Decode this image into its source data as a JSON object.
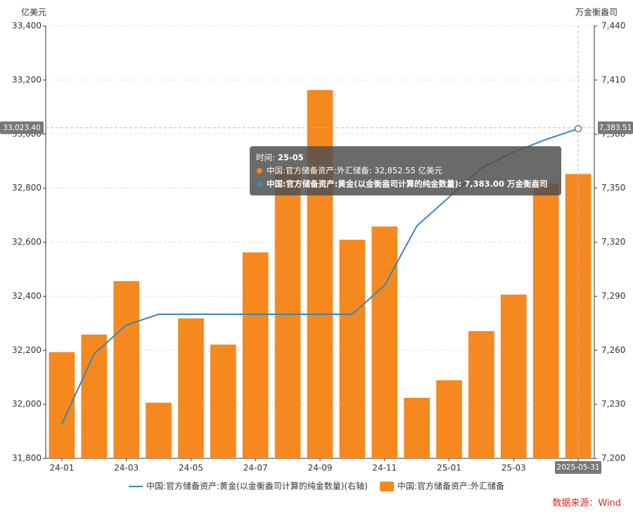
{
  "chart_data": {
    "type": "bar",
    "y_label": "亿美元",
    "y2_label": "万金衡盎司",
    "source": "数据来源：Wind",
    "categories": [
      "24-01",
      null,
      "24-03",
      null,
      "24-05",
      null,
      "24-07",
      null,
      "24-09",
      null,
      "24-11",
      null,
      "25-01",
      null,
      "25-03",
      null,
      "25-05"
    ],
    "series": [
      {
        "name": "中国:官方储备资产:黄金(以金衡盎司计算的纯金数量)(右轴)",
        "type": "line",
        "axis": "y2",
        "color": "#3a87b6",
        "values": [
          7219,
          7258,
          7274,
          7280,
          7280,
          7280,
          7280,
          7280,
          7280,
          7280,
          7296,
          7329,
          7345,
          7361,
          7370,
          7377,
          7383
        ]
      },
      {
        "name": "中国:官方储备资产:外汇储备",
        "type": "bar",
        "color": "#f5891f",
        "values": [
          32193,
          32258,
          32456,
          32006,
          32318,
          32221,
          32562,
          32880,
          33163,
          32609,
          32658,
          32024,
          32089,
          32271,
          32406,
          32817,
          32852.55
        ]
      }
    ],
    "ylim": [
      31800,
      33400
    ],
    "yticks": [
      {
        "value": 31800,
        "label": "31,800"
      },
      {
        "value": 32000,
        "label": "32,000"
      },
      {
        "value": 32200,
        "label": "32,200"
      },
      {
        "value": 32400,
        "label": "32,400"
      },
      {
        "value": 32600,
        "label": "32,600"
      },
      {
        "value": 32800,
        "label": "32,800"
      },
      {
        "value": 33000,
        "label": "33,000"
      },
      {
        "value": 33200,
        "label": "33,200"
      },
      {
        "value": 33400,
        "label": "33,400"
      }
    ],
    "y2lim": [
      7200,
      7440
    ],
    "y2ticks": [
      {
        "value": 7200,
        "label": "7,200"
      },
      {
        "value": 7230,
        "label": "7,230"
      },
      {
        "value": 7260,
        "label": "7,260"
      },
      {
        "value": 7290,
        "label": "7,290"
      },
      {
        "value": 7320,
        "label": "7,320"
      },
      {
        "value": 7350,
        "label": "7,350"
      },
      {
        "value": 7380,
        "label": "7,380"
      },
      {
        "value": 7410,
        "label": "7,410"
      },
      {
        "value": 7440,
        "label": "7,440"
      }
    ],
    "grid": true,
    "crosshair": {
      "y": {
        "value": 33023.4,
        "label": "33,023.40"
      },
      "y2": {
        "value": 7383.51,
        "label": "7,383.51"
      },
      "x_label": "2025-05-31"
    },
    "tooltip": {
      "time_label": "时间:",
      "time": "25-05",
      "rows": [
        "中国:官方储备资产:外汇储备: 32,852.55  亿美元",
        "中国:官方储备资产:黄金(以金衡盎司计算的纯金数量): 7,383.00  万金衡盎司"
      ]
    }
  }
}
